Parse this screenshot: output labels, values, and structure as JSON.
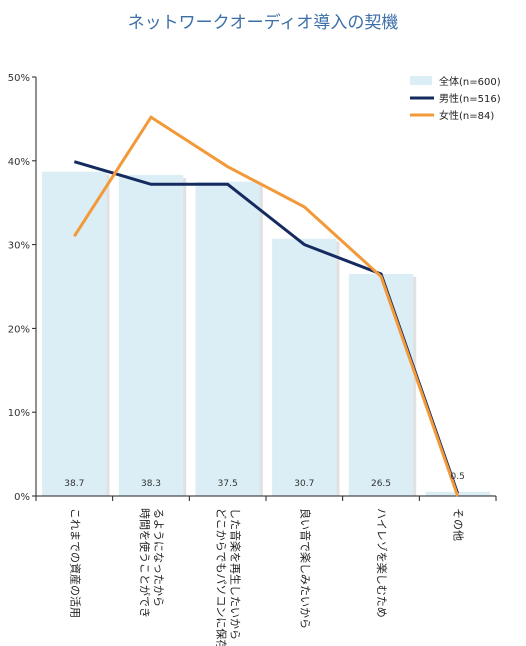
{
  "chart_data": {
    "type": "bar",
    "title": "ネットワークオーディオ導入の契機",
    "categories": [
      "これまでの資産の活用",
      "時間を使うことができるようになったから",
      "どこからでもパソコンに保存した音楽を再生したいから",
      "良い音で楽しみたいから",
      "ハイレゾを楽しむため",
      "その他"
    ],
    "category_lines": [
      [
        "これまでの資産の活用"
      ],
      [
        "時間を使うことができ",
        "るようになったから"
      ],
      [
        "どこからでもパソコンに保存",
        "した音楽を再生したいから"
      ],
      [
        "良い音で楽しみたいから"
      ],
      [
        "ハイレゾを楽しむため"
      ],
      [
        "その他"
      ]
    ],
    "series": [
      {
        "name": "全体(n=600)",
        "type": "bar",
        "color": "#dbedf5",
        "values": [
          38.7,
          38.3,
          37.5,
          30.7,
          26.5,
          0.5
        ]
      },
      {
        "name": "男性(n=516)",
        "type": "line",
        "color": "#152a5f",
        "values": [
          39.9,
          37.2,
          37.2,
          30.0,
          26.5,
          0.3
        ]
      },
      {
        "name": "女性(n=84)",
        "type": "line",
        "color": "#f29a3a",
        "values": [
          31.0,
          45.2,
          39.3,
          34.5,
          26.2,
          0.0
        ]
      }
    ],
    "data_labels": [
      "38.7",
      "38.3",
      "37.5",
      "30.7",
      "26.5",
      "0.5"
    ],
    "yticks": [
      "0%",
      "10%",
      "20%",
      "30%",
      "40%",
      "50%"
    ],
    "ylim": [
      0,
      50
    ],
    "legend_position": "top-right",
    "grid": false
  }
}
